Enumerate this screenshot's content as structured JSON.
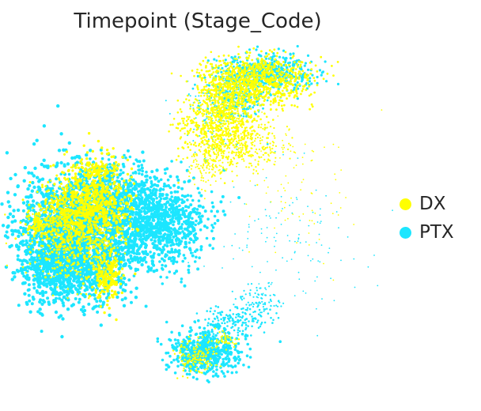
{
  "chart_data": {
    "type": "scatter",
    "title": "Timepoint (Stage_Code)",
    "xlabel": "",
    "ylabel": "",
    "axes_visible": false,
    "grid": false,
    "legend_position": "right",
    "series": [
      {
        "name": "DX",
        "color": "#ffff00"
      },
      {
        "name": "PTX",
        "color": "#1ce6ff"
      }
    ]
  }
}
